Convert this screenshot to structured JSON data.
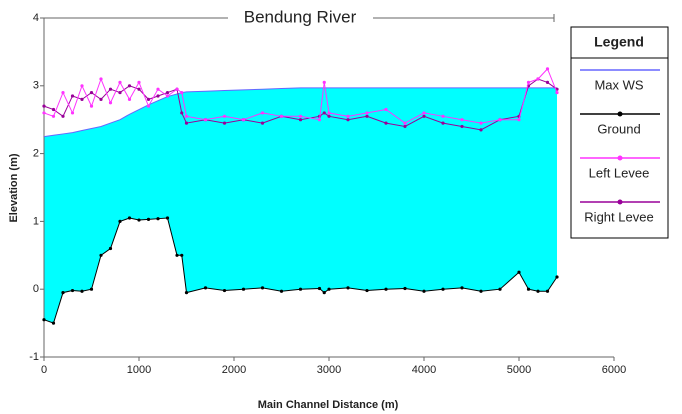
{
  "chart_data": {
    "type": "line",
    "title": "Bendung River",
    "x_label": "Main Channel Distance (m)",
    "y_label": "Elevation (m)",
    "legend_title": "Legend",
    "legend": "right",
    "area_color": "#00ffff",
    "xlim": [
      0,
      6000
    ],
    "xticks": [
      0,
      1000,
      2000,
      3000,
      4000,
      5000,
      6000
    ],
    "ylim": [
      -1,
      4
    ],
    "yticks": [
      -1,
      0,
      1,
      2,
      3,
      4
    ],
    "x": [
      0,
      100,
      200,
      300,
      400,
      500,
      600,
      700,
      800,
      900,
      1000,
      1100,
      1200,
      1300,
      1400,
      1450,
      1500,
      1700,
      1900,
      2100,
      2300,
      2500,
      2700,
      2900,
      2950,
      3000,
      3200,
      3400,
      3600,
      3800,
      4000,
      4200,
      4400,
      4600,
      4800,
      5000,
      5100,
      5200,
      5300,
      5400
    ],
    "series": [
      {
        "name": "Max WS",
        "color": "#6666ff",
        "values": [
          2.25,
          2.27,
          2.29,
          2.31,
          2.34,
          2.37,
          2.4,
          2.45,
          2.5,
          2.58,
          2.65,
          2.72,
          2.78,
          2.84,
          2.88,
          2.9,
          2.91,
          2.92,
          2.93,
          2.94,
          2.95,
          2.96,
          2.97,
          2.97,
          2.97,
          2.97,
          2.97,
          2.97,
          2.97,
          2.97,
          2.97,
          2.97,
          2.97,
          2.97,
          2.97,
          2.97,
          2.97,
          2.97,
          2.97,
          2.97
        ]
      },
      {
        "name": "Ground",
        "color": "#000000",
        "values": [
          -0.45,
          -0.5,
          -0.05,
          -0.02,
          -0.03,
          0.0,
          0.5,
          0.6,
          1.0,
          1.05,
          1.02,
          1.03,
          1.04,
          1.05,
          0.5,
          0.5,
          -0.05,
          0.02,
          -0.02,
          0.0,
          0.02,
          -0.03,
          0.0,
          0.01,
          -0.05,
          0.0,
          0.02,
          -0.02,
          0.0,
          0.01,
          -0.03,
          0.0,
          0.02,
          -0.03,
          0.0,
          0.25,
          0.0,
          -0.03,
          -0.03,
          0.18
        ]
      },
      {
        "name": "Left Levee",
        "color": "#ff33ff",
        "values": [
          2.6,
          2.55,
          2.9,
          2.6,
          3.0,
          2.7,
          3.1,
          2.75,
          3.05,
          2.8,
          3.05,
          2.7,
          2.95,
          2.85,
          2.95,
          2.9,
          2.55,
          2.5,
          2.55,
          2.5,
          2.6,
          2.55,
          2.55,
          2.5,
          3.05,
          2.6,
          2.55,
          2.6,
          2.65,
          2.45,
          2.6,
          2.55,
          2.5,
          2.45,
          2.5,
          2.5,
          3.05,
          3.1,
          3.25,
          2.9
        ]
      },
      {
        "name": "Right Levee",
        "color": "#990099",
        "values": [
          2.7,
          2.65,
          2.55,
          2.85,
          2.8,
          2.9,
          2.8,
          2.95,
          2.9,
          3.0,
          2.95,
          2.8,
          2.85,
          2.9,
          2.95,
          2.6,
          2.45,
          2.5,
          2.45,
          2.5,
          2.45,
          2.55,
          2.5,
          2.55,
          2.6,
          2.55,
          2.5,
          2.55,
          2.45,
          2.4,
          2.55,
          2.45,
          2.4,
          2.35,
          2.5,
          2.55,
          3.0,
          3.1,
          3.05,
          2.95
        ]
      }
    ]
  }
}
